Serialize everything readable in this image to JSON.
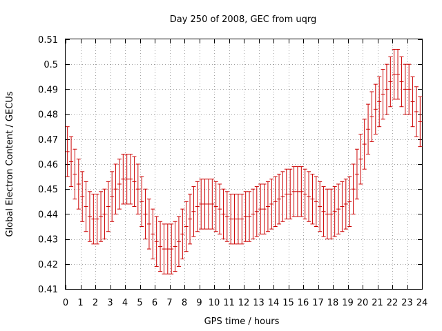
{
  "chart_data": {
    "type": "scatter",
    "title": "Day 250 of 2008, GEC from uqrg",
    "xlabel": "GPS time / hours",
    "ylabel": "Global Electron Content / GECUs",
    "xlim": [
      0,
      24
    ],
    "ylim": [
      0.41,
      0.51
    ],
    "xticks": [
      "0",
      "1",
      "2",
      "3",
      "4",
      "5",
      "6",
      "7",
      "8",
      "9",
      "10",
      "11",
      "12",
      "13",
      "14",
      "15",
      "16",
      "17",
      "18",
      "19",
      "20",
      "21",
      "22",
      "23",
      "24"
    ],
    "yticks": [
      "0.41",
      "0.42",
      "0.43",
      "0.44",
      "0.45",
      "0.46",
      "0.47",
      "0.48",
      "0.49",
      "0.5",
      "0.51"
    ],
    "grid": true,
    "color": "#cc0000",
    "error": 0.01,
    "series": [
      {
        "x": [
          0.125,
          0.375,
          0.625,
          0.875,
          1.125,
          1.375,
          1.625,
          1.875,
          2.125,
          2.375,
          2.625,
          2.875,
          3.125,
          3.375,
          3.625,
          3.875,
          4.125,
          4.375,
          4.625,
          4.875,
          5.125,
          5.375,
          5.625,
          5.875,
          6.125,
          6.375,
          6.625,
          6.875,
          7.125,
          7.375,
          7.625,
          7.875,
          8.125,
          8.375,
          8.625,
          8.875,
          9.125,
          9.375,
          9.625,
          9.875,
          10.125,
          10.375,
          10.625,
          10.875,
          11.125,
          11.375,
          11.625,
          11.875,
          12.125,
          12.375,
          12.625,
          12.875,
          13.125,
          13.375,
          13.625,
          13.875,
          14.125,
          14.375,
          14.625,
          14.875,
          15.125,
          15.375,
          15.625,
          15.875,
          16.125,
          16.375,
          16.625,
          16.875,
          17.125,
          17.375,
          17.625,
          17.875,
          18.125,
          18.375,
          18.625,
          18.875,
          19.125,
          19.375,
          19.625,
          19.875,
          20.125,
          20.375,
          20.625,
          20.875,
          21.125,
          21.375,
          21.625,
          21.875,
          22.125,
          22.375,
          22.625,
          22.875,
          23.125,
          23.375,
          23.625,
          23.875
        ],
        "y": [
          0.465,
          0.461,
          0.456,
          0.452,
          0.447,
          0.443,
          0.439,
          0.438,
          0.438,
          0.439,
          0.44,
          0.443,
          0.447,
          0.45,
          0.452,
          0.454,
          0.454,
          0.454,
          0.453,
          0.45,
          0.445,
          0.44,
          0.436,
          0.432,
          0.429,
          0.427,
          0.426,
          0.426,
          0.426,
          0.427,
          0.429,
          0.432,
          0.435,
          0.438,
          0.441,
          0.443,
          0.444,
          0.444,
          0.444,
          0.444,
          0.443,
          0.442,
          0.44,
          0.439,
          0.438,
          0.438,
          0.438,
          0.438,
          0.439,
          0.439,
          0.44,
          0.441,
          0.442,
          0.442,
          0.443,
          0.444,
          0.445,
          0.446,
          0.447,
          0.448,
          0.448,
          0.449,
          0.449,
          0.449,
          0.448,
          0.447,
          0.446,
          0.445,
          0.443,
          0.441,
          0.44,
          0.44,
          0.441,
          0.442,
          0.443,
          0.444,
          0.445,
          0.45,
          0.456,
          0.462,
          0.468,
          0.474,
          0.479,
          0.482,
          0.485,
          0.488,
          0.49,
          0.493,
          0.496,
          0.496,
          0.493,
          0.49,
          0.49,
          0.485,
          0.481,
          0.477
        ]
      }
    ]
  }
}
